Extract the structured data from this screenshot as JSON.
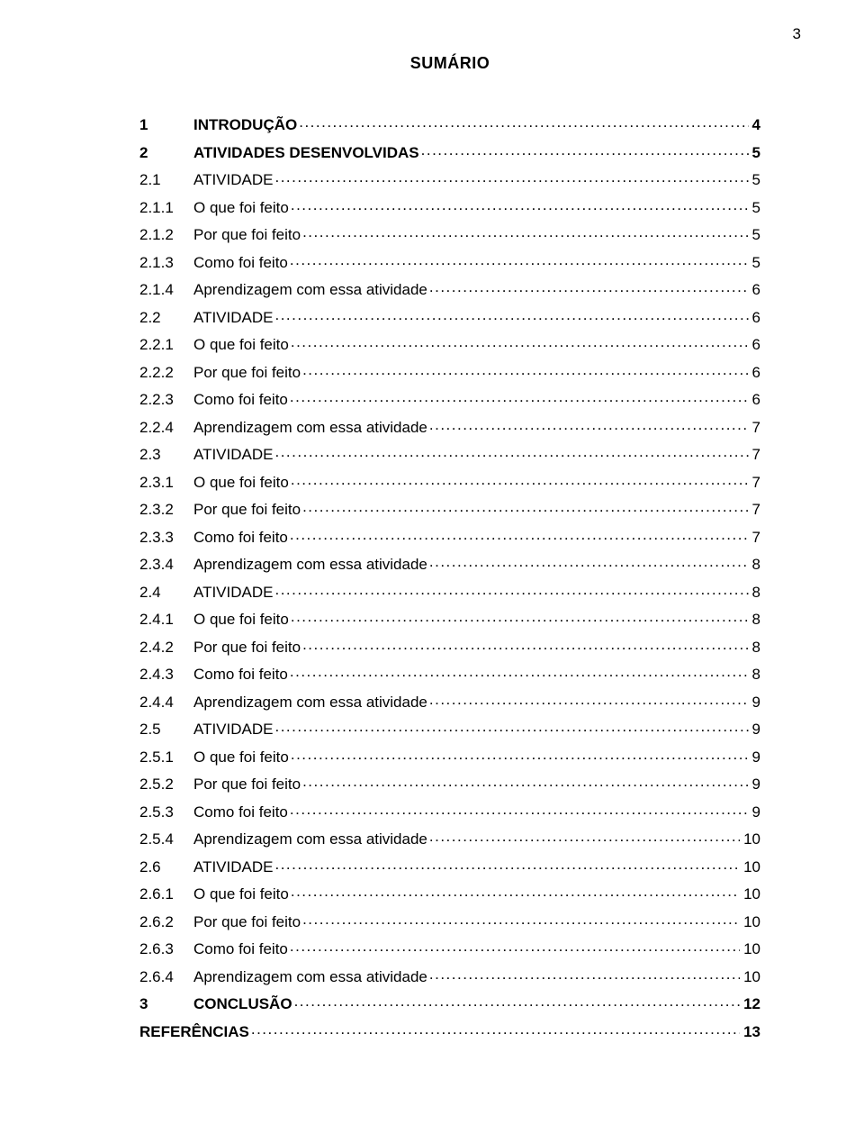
{
  "page_number": "3",
  "title": "SUMÁRIO",
  "font": {
    "family": "Arial",
    "size_pt": 17,
    "title_size_pt": 18,
    "title_weight": "bold"
  },
  "colors": {
    "text": "#000000",
    "background": "#ffffff"
  },
  "toc": [
    {
      "num": "1",
      "label": "INTRODUÇÃO",
      "page": "4",
      "bold": true
    },
    {
      "num": "2",
      "label": "ATIVIDADES DESENVOLVIDAS",
      "page": "5",
      "bold": true
    },
    {
      "num": "2.1",
      "label": "ATIVIDADE",
      "page": "5",
      "bold": false
    },
    {
      "num": "2.1.1",
      "label": "O que foi feito",
      "page": "5",
      "bold": false
    },
    {
      "num": "2.1.2",
      "label": "Por que foi feito",
      "page": "5",
      "bold": false
    },
    {
      "num": "2.1.3",
      "label": "Como foi feito",
      "page": "5",
      "bold": false
    },
    {
      "num": "2.1.4",
      "label": "Aprendizagem com essa atividade",
      "page": "6",
      "bold": false
    },
    {
      "num": "2.2",
      "label": "ATIVIDADE",
      "page": "6",
      "bold": false
    },
    {
      "num": "2.2.1",
      "label": "O que foi feito",
      "page": "6",
      "bold": false
    },
    {
      "num": "2.2.2",
      "label": "Por que foi feito",
      "page": "6",
      "bold": false
    },
    {
      "num": "2.2.3",
      "label": "Como foi feito",
      "page": "6",
      "bold": false
    },
    {
      "num": "2.2.4",
      "label": "Aprendizagem com essa atividade",
      "page": "7",
      "bold": false
    },
    {
      "num": "2.3",
      "label": "ATIVIDADE",
      "page": "7",
      "bold": false
    },
    {
      "num": "2.3.1",
      "label": "O que foi feito",
      "page": "7",
      "bold": false
    },
    {
      "num": "2.3.2",
      "label": "Por que foi feito",
      "page": "7",
      "bold": false
    },
    {
      "num": "2.3.3",
      "label": "Como foi feito",
      "page": "7",
      "bold": false
    },
    {
      "num": "2.3.4",
      "label": "Aprendizagem com essa atividade",
      "page": "8",
      "bold": false
    },
    {
      "num": "2.4",
      "label": "ATIVIDADE",
      "page": "8",
      "bold": false
    },
    {
      "num": "2.4.1",
      "label": "O que foi feito",
      "page": "8",
      "bold": false
    },
    {
      "num": "2.4.2",
      "label": "Por que foi feito",
      "page": "8",
      "bold": false
    },
    {
      "num": "2.4.3",
      "label": "Como foi feito",
      "page": "8",
      "bold": false
    },
    {
      "num": "2.4.4",
      "label": "Aprendizagem com essa atividade",
      "page": "9",
      "bold": false
    },
    {
      "num": "2.5",
      "label": "ATIVIDADE",
      "page": "9",
      "bold": false
    },
    {
      "num": "2.5.1",
      "label": "O que foi feito",
      "page": "9",
      "bold": false
    },
    {
      "num": "2.5.2",
      "label": "Por que foi feito",
      "page": "9",
      "bold": false
    },
    {
      "num": "2.5.3",
      "label": "Como foi feito",
      "page": "9",
      "bold": false
    },
    {
      "num": "2.5.4",
      "label": "Aprendizagem com essa atividade",
      "page": "10",
      "bold": false
    },
    {
      "num": "2.6",
      "label": "ATIVIDADE",
      "page": "10",
      "bold": false
    },
    {
      "num": "2.6.1",
      "label": "O que foi feito",
      "page": "10",
      "bold": false
    },
    {
      "num": "2.6.2",
      "label": "Por que foi feito",
      "page": "10",
      "bold": false
    },
    {
      "num": "2.6.3",
      "label": "Como foi feito",
      "page": "10",
      "bold": false
    },
    {
      "num": "2.6.4",
      "label": "Aprendizagem com essa atividade",
      "page": "10",
      "bold": false
    },
    {
      "num": "3",
      "label": "CONCLUSÃO",
      "page": "12",
      "bold": true
    },
    {
      "num": "",
      "label": "REFERÊNCIAS",
      "page": "13",
      "bold": true,
      "no_indent": true
    }
  ]
}
